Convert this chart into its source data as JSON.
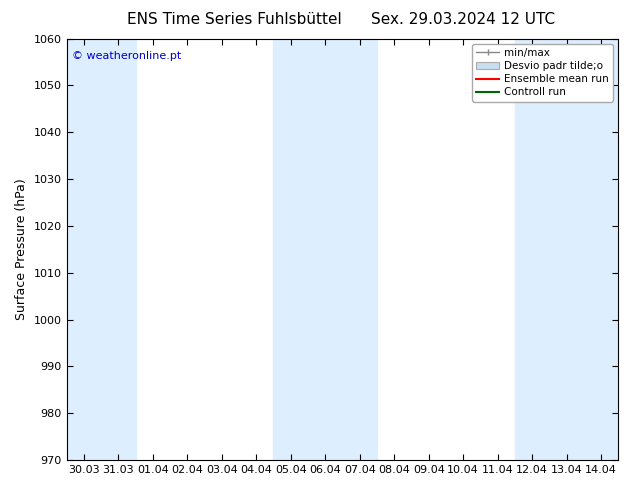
{
  "title_left": "ENS Time Series Fuhlsbüttel",
  "title_right": "Sex. 29.03.2024 12 UTC",
  "ylabel": "Surface Pressure (hPa)",
  "ylim": [
    970,
    1060
  ],
  "yticks": [
    970,
    980,
    990,
    1000,
    1010,
    1020,
    1030,
    1040,
    1050,
    1060
  ],
  "x_labels": [
    "30.03",
    "31.03",
    "01.04",
    "02.04",
    "03.04",
    "04.04",
    "05.04",
    "06.04",
    "07.04",
    "08.04",
    "09.04",
    "10.04",
    "11.04",
    "12.04",
    "13.04",
    "14.04"
  ],
  "watermark": "© weatheronline.pt",
  "watermark_color": "#0000cc",
  "legend_entries": [
    "min/max",
    "Desvio padr tilde;o",
    "Ensemble mean run",
    "Controll run"
  ],
  "bg_color": "#ffffff",
  "plot_bg_color": "#ffffff",
  "shaded_ranges": [
    [
      0,
      2
    ],
    [
      6,
      9
    ],
    [
      13,
      16
    ]
  ],
  "shaded_color": "#ddeeff",
  "title_fontsize": 11,
  "tick_fontsize": 8,
  "ylabel_fontsize": 9
}
